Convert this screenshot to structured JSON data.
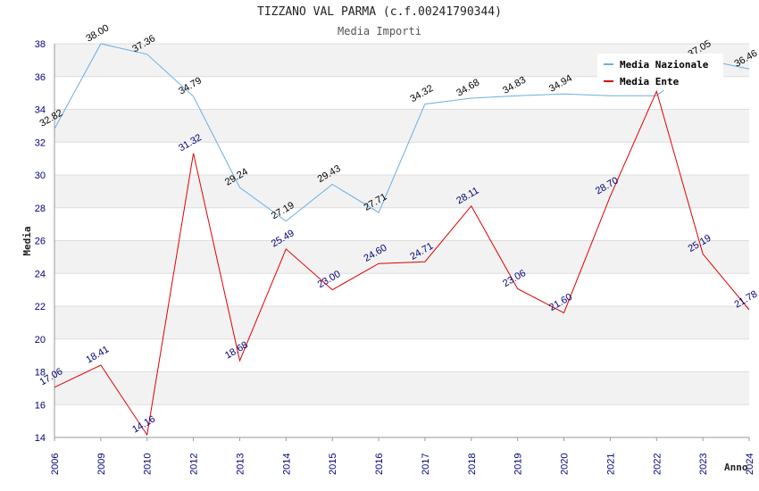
{
  "chart_data": {
    "type": "line",
    "title": "TIZZANO VAL PARMA (c.f.00241790344)",
    "subtitle": "Media Importi",
    "xlabel": "Anno",
    "ylabel": "Media",
    "categories": [
      "2006",
      "2009",
      "2010",
      "2012",
      "2013",
      "2014",
      "2015",
      "2016",
      "2017",
      "2018",
      "2019",
      "2020",
      "2021",
      "2022",
      "2023",
      "2024"
    ],
    "ylim": [
      14,
      38
    ],
    "yticks": [
      14,
      16,
      18,
      20,
      22,
      24,
      26,
      28,
      30,
      32,
      34,
      36,
      38
    ],
    "grid": true,
    "legend_position": "top-right",
    "series": [
      {
        "name": "Media Nazionale",
        "color": "#6aaee6",
        "label_color": "#000000",
        "values": [
          32.82,
          38.0,
          37.36,
          34.79,
          29.24,
          27.19,
          29.43,
          27.71,
          34.32,
          34.68,
          34.83,
          34.94,
          34.83,
          34.83,
          37.05,
          36.46
        ],
        "labels": [
          "32.82",
          "38.00",
          "37.36",
          "34.79",
          "29.24",
          "27.19",
          "29.43",
          "27.71",
          "34.32",
          "34.68",
          "34.83",
          "34.94",
          "",
          "",
          "37.05",
          "36.46"
        ]
      },
      {
        "name": "Media Ente",
        "color": "#e00000",
        "label_color": "#00007a",
        "values": [
          17.06,
          18.41,
          14.16,
          31.32,
          18.68,
          25.49,
          23.0,
          24.6,
          24.71,
          28.11,
          23.06,
          21.6,
          28.7,
          35.1,
          25.19,
          21.78
        ],
        "labels": [
          "17.06",
          "18.41",
          "14.16",
          "31.32",
          "18.68",
          "25.49",
          "23.00",
          "24.60",
          "24.71",
          "28.11",
          "23.06",
          "21.60",
          "28.70",
          "",
          "25.19",
          "21.78"
        ]
      }
    ]
  }
}
